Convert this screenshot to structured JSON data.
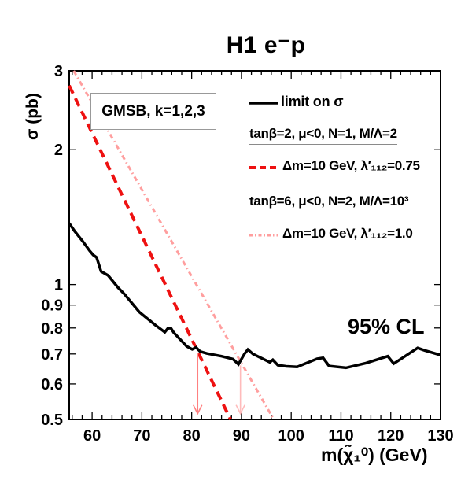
{
  "title": "H1 e⁻p",
  "axes": {
    "x_label": "m(χ̃₁⁰) (GeV)",
    "y_label": "σ (pb)"
  },
  "annotations": {
    "gmsb_box": "GMSB, k=1,2,3",
    "confidence": "95% CL"
  },
  "legend": {
    "limit": {
      "label": "limit on σ"
    },
    "groups": [
      {
        "header": "tanβ=2, μ<0, N=1, M/Λ=2",
        "item": "Δm=10 GeV, λ′₁₁₂=0.75"
      },
      {
        "header": "tanβ=6, μ<0, N=2, M/Λ=10³",
        "item": "Δm=10 GeV, λ′₁₁₂=1.0"
      }
    ]
  },
  "chart_data": {
    "type": "line",
    "title": "H1 e⁻p",
    "xlabel": "m(χ̃₁⁰) (GeV)",
    "ylabel": "σ (pb)",
    "xlim": [
      55.4,
      130
    ],
    "ylim": [
      0.5,
      3.0
    ],
    "yscale": "log",
    "grid": false,
    "x_major_ticks": [
      60,
      70,
      80,
      90,
      100,
      110,
      120,
      130
    ],
    "x_minor_step": 2,
    "y_ticks": [
      0.5,
      0.6,
      0.7,
      0.8,
      0.9,
      1,
      2,
      3
    ],
    "y_tick_labels": [
      "0.5",
      "0.6",
      "0.7",
      "0.8",
      "0.9",
      "1",
      "2",
      "3"
    ],
    "series": [
      {
        "id": "limit-curve",
        "name": "limit on σ",
        "style": "solid",
        "color": "#000000",
        "width": 3.5,
        "points": [
          [
            55.4,
            1.37
          ],
          [
            56.5,
            1.315
          ],
          [
            58.1,
            1.25
          ],
          [
            59.5,
            1.19
          ],
          [
            60.2,
            1.165
          ],
          [
            60.9,
            1.15
          ],
          [
            61.8,
            1.07
          ],
          [
            63.2,
            1.048
          ],
          [
            65.2,
            0.985
          ],
          [
            66.5,
            0.952
          ],
          [
            69.5,
            0.868
          ],
          [
            72.7,
            0.812
          ],
          [
            74.6,
            0.783
          ],
          [
            75.2,
            0.798
          ],
          [
            75.8,
            0.8
          ],
          [
            76.4,
            0.781
          ],
          [
            79.0,
            0.728
          ],
          [
            80.1,
            0.717
          ],
          [
            80.9,
            0.724
          ],
          [
            81.7,
            0.709
          ],
          [
            83.0,
            0.702
          ],
          [
            86.0,
            0.692
          ],
          [
            88.3,
            0.682
          ],
          [
            89.4,
            0.664
          ],
          [
            90.6,
            0.7
          ],
          [
            91.3,
            0.716
          ],
          [
            92.3,
            0.7
          ],
          [
            95.7,
            0.671
          ],
          [
            96.3,
            0.679
          ],
          [
            97.3,
            0.661
          ],
          [
            99.0,
            0.657
          ],
          [
            101.2,
            0.655
          ],
          [
            105.2,
            0.683
          ],
          [
            106.4,
            0.686
          ],
          [
            107.6,
            0.658
          ],
          [
            111.0,
            0.652
          ],
          [
            115.0,
            0.668
          ],
          [
            119.4,
            0.692
          ],
          [
            120.6,
            0.666
          ],
          [
            125.4,
            0.722
          ],
          [
            126.8,
            0.713
          ],
          [
            130.0,
            0.696
          ]
        ]
      },
      {
        "id": "gmsb-dashed-curve",
        "name": "Δm=10 GeV, λ′₁₁₂=0.75",
        "style": "dashed",
        "color": "#ee1111",
        "width": 4,
        "points": [
          [
            55.4,
            2.78
          ],
          [
            87.8,
            0.5
          ]
        ]
      },
      {
        "id": "gmsb-dashdot-curve",
        "name": "Δm=10 GeV, λ′₁₁₂=1.0",
        "style": "dashdot",
        "color": "#ff9e9e",
        "width": 3,
        "points": [
          [
            56.3,
            3.0
          ],
          [
            96.5,
            0.5
          ]
        ]
      }
    ],
    "arrows": [
      {
        "x": 81.2,
        "y_from": 0.705,
        "y_to": 0.515,
        "color": "#ff8080"
      },
      {
        "x": 89.8,
        "y_from": 0.66,
        "y_to": 0.515,
        "color": "#ffbbbb"
      }
    ],
    "legend_position": "upper right"
  }
}
